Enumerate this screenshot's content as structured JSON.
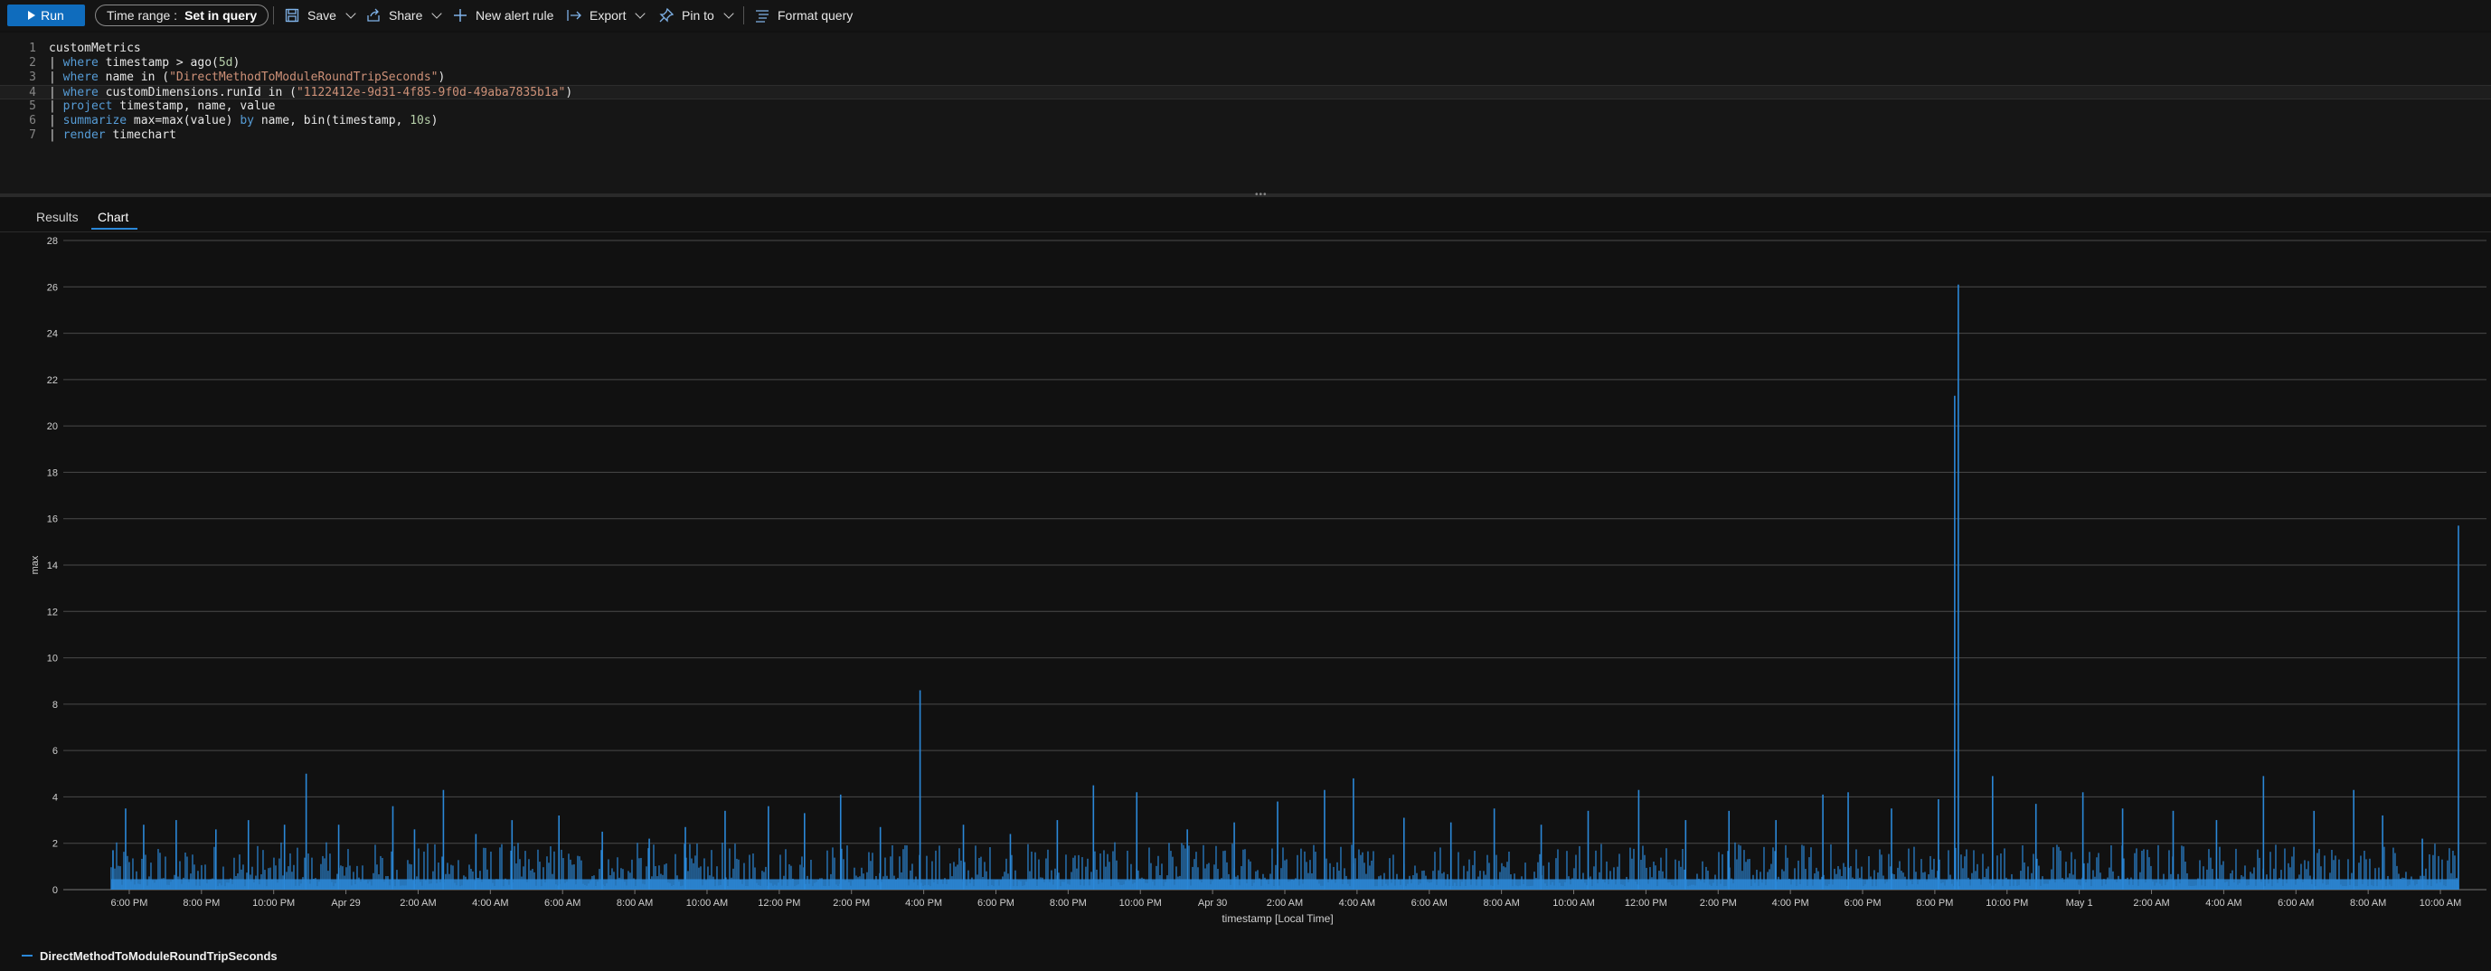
{
  "toolbar": {
    "run_label": "Run",
    "time_range_label": "Time range :",
    "time_range_value": "Set in query",
    "save_label": "Save",
    "share_label": "Share",
    "new_alert_label": "New alert rule",
    "export_label": "Export",
    "pin_label": "Pin to",
    "format_label": "Format query"
  },
  "editor": {
    "lines": [
      {
        "n": "1",
        "tokens": [
          {
            "t": "customMetrics",
            "c": "idn"
          }
        ]
      },
      {
        "n": "2",
        "tokens": [
          {
            "t": "| ",
            "c": "pipe"
          },
          {
            "t": "where",
            "c": "kw"
          },
          {
            "t": " timestamp > ago(",
            "c": "idn"
          },
          {
            "t": "5d",
            "c": "num"
          },
          {
            "t": ")",
            "c": "idn"
          }
        ]
      },
      {
        "n": "3",
        "tokens": [
          {
            "t": "| ",
            "c": "pipe"
          },
          {
            "t": "where",
            "c": "kw"
          },
          {
            "t": " name in (",
            "c": "idn"
          },
          {
            "t": "\"DirectMethodToModuleRoundTripSeconds\"",
            "c": "str"
          },
          {
            "t": ")",
            "c": "idn"
          }
        ]
      },
      {
        "n": "4",
        "tokens": [
          {
            "t": "| ",
            "c": "pipe"
          },
          {
            "t": "where",
            "c": "kw"
          },
          {
            "t": " customDimensions.runId in (",
            "c": "idn"
          },
          {
            "t": "\"1122412e-9d31-4f85-9f0d-49aba7835b1a\"",
            "c": "str"
          },
          {
            "t": ")",
            "c": "idn"
          }
        ]
      },
      {
        "n": "5",
        "tokens": [
          {
            "t": "| ",
            "c": "pipe"
          },
          {
            "t": "project",
            "c": "kw"
          },
          {
            "t": " timestamp, name, value",
            "c": "idn"
          }
        ]
      },
      {
        "n": "6",
        "tokens": [
          {
            "t": "| ",
            "c": "pipe"
          },
          {
            "t": "summarize",
            "c": "kw"
          },
          {
            "t": " max=max(value) ",
            "c": "idn"
          },
          {
            "t": "by",
            "c": "kw"
          },
          {
            "t": " name, bin(timestamp, ",
            "c": "idn"
          },
          {
            "t": "10s",
            "c": "num"
          },
          {
            "t": ")",
            "c": "idn"
          }
        ]
      },
      {
        "n": "7",
        "tokens": [
          {
            "t": "| ",
            "c": "pipe"
          },
          {
            "t": "render",
            "c": "kw"
          },
          {
            "t": " timechart",
            "c": "idn"
          }
        ]
      }
    ]
  },
  "tabs": {
    "results_label": "Results",
    "chart_label": "Chart"
  },
  "colors": {
    "accent": "#0f6cbd",
    "series": "#2b88d8",
    "background": "#111111"
  },
  "chart_data": {
    "type": "bar",
    "ylabel": "max",
    "xlabel": "timestamp [Local Time]",
    "ylim": [
      0,
      28
    ],
    "yticks": [
      "0",
      "2",
      "4",
      "6",
      "8",
      "10",
      "12",
      "14",
      "16",
      "18",
      "20",
      "22",
      "24",
      "26",
      "28"
    ],
    "xticks": [
      "6:00 PM",
      "8:00 PM",
      "10:00 PM",
      "Apr 29",
      "2:00 AM",
      "4:00 AM",
      "6:00 AM",
      "8:00 AM",
      "10:00 AM",
      "12:00 PM",
      "2:00 PM",
      "4:00 PM",
      "6:00 PM",
      "8:00 PM",
      "10:00 PM",
      "Apr 30",
      "2:00 AM",
      "4:00 AM",
      "6:00 AM",
      "8:00 AM",
      "10:00 AM",
      "12:00 PM",
      "2:00 PM",
      "4:00 PM",
      "6:00 PM",
      "8:00 PM",
      "10:00 PM",
      "May 1",
      "2:00 AM",
      "4:00 AM",
      "6:00 AM",
      "8:00 AM",
      "10:00 AM"
    ],
    "x_first_tick_hours": 1.0,
    "x_range_hours": [
      0,
      65.6
    ],
    "grid": true,
    "legend_position": "bottom-left",
    "series": [
      {
        "name": "DirectMethodToModuleRoundTripSeconds",
        "peaks": [
          {
            "hour": 0.55,
            "value": 1.7
          },
          {
            "hour": 0.9,
            "value": 3.5
          },
          {
            "hour": 1.4,
            "value": 2.8
          },
          {
            "hour": 2.3,
            "value": 3.0
          },
          {
            "hour": 3.4,
            "value": 2.6
          },
          {
            "hour": 4.3,
            "value": 3.0
          },
          {
            "hour": 5.3,
            "value": 2.8
          },
          {
            "hour": 5.9,
            "value": 5.0
          },
          {
            "hour": 6.8,
            "value": 2.8
          },
          {
            "hour": 8.3,
            "value": 3.6
          },
          {
            "hour": 8.9,
            "value": 2.6
          },
          {
            "hour": 9.7,
            "value": 4.3
          },
          {
            "hour": 10.6,
            "value": 2.4
          },
          {
            "hour": 11.6,
            "value": 3.0
          },
          {
            "hour": 12.9,
            "value": 3.2
          },
          {
            "hour": 14.1,
            "value": 2.5
          },
          {
            "hour": 15.4,
            "value": 2.2
          },
          {
            "hour": 16.4,
            "value": 2.7
          },
          {
            "hour": 17.5,
            "value": 3.4
          },
          {
            "hour": 18.7,
            "value": 3.6
          },
          {
            "hour": 19.7,
            "value": 3.3
          },
          {
            "hour": 20.7,
            "value": 4.1
          },
          {
            "hour": 21.8,
            "value": 2.7
          },
          {
            "hour": 22.9,
            "value": 8.6
          },
          {
            "hour": 24.1,
            "value": 2.8
          },
          {
            "hour": 25.4,
            "value": 2.4
          },
          {
            "hour": 26.7,
            "value": 3.0
          },
          {
            "hour": 27.7,
            "value": 4.5
          },
          {
            "hour": 28.9,
            "value": 4.2
          },
          {
            "hour": 30.3,
            "value": 2.6
          },
          {
            "hour": 31.6,
            "value": 2.9
          },
          {
            "hour": 32.8,
            "value": 3.8
          },
          {
            "hour": 34.1,
            "value": 4.3
          },
          {
            "hour": 34.9,
            "value": 4.8
          },
          {
            "hour": 36.3,
            "value": 3.1
          },
          {
            "hour": 37.6,
            "value": 2.9
          },
          {
            "hour": 38.8,
            "value": 3.5
          },
          {
            "hour": 40.1,
            "value": 2.8
          },
          {
            "hour": 41.4,
            "value": 3.4
          },
          {
            "hour": 42.8,
            "value": 4.3
          },
          {
            "hour": 44.1,
            "value": 3.0
          },
          {
            "hour": 45.3,
            "value": 3.4
          },
          {
            "hour": 46.6,
            "value": 3.0
          },
          {
            "hour": 47.9,
            "value": 4.1
          },
          {
            "hour": 48.6,
            "value": 4.2
          },
          {
            "hour": 49.8,
            "value": 3.5
          },
          {
            "hour": 51.1,
            "value": 3.9
          },
          {
            "hour": 51.55,
            "value": 21.3
          },
          {
            "hour": 51.65,
            "value": 26.1
          },
          {
            "hour": 52.6,
            "value": 4.9
          },
          {
            "hour": 53.8,
            "value": 3.7
          },
          {
            "hour": 55.1,
            "value": 4.2
          },
          {
            "hour": 56.2,
            "value": 3.5
          },
          {
            "hour": 57.6,
            "value": 3.4
          },
          {
            "hour": 58.8,
            "value": 3.0
          },
          {
            "hour": 60.1,
            "value": 4.9
          },
          {
            "hour": 61.5,
            "value": 3.4
          },
          {
            "hour": 62.6,
            "value": 4.3
          },
          {
            "hour": 63.4,
            "value": 3.2
          },
          {
            "hour": 64.5,
            "value": 2.2
          },
          {
            "hour": 65.5,
            "value": 15.7
          }
        ]
      }
    ]
  }
}
